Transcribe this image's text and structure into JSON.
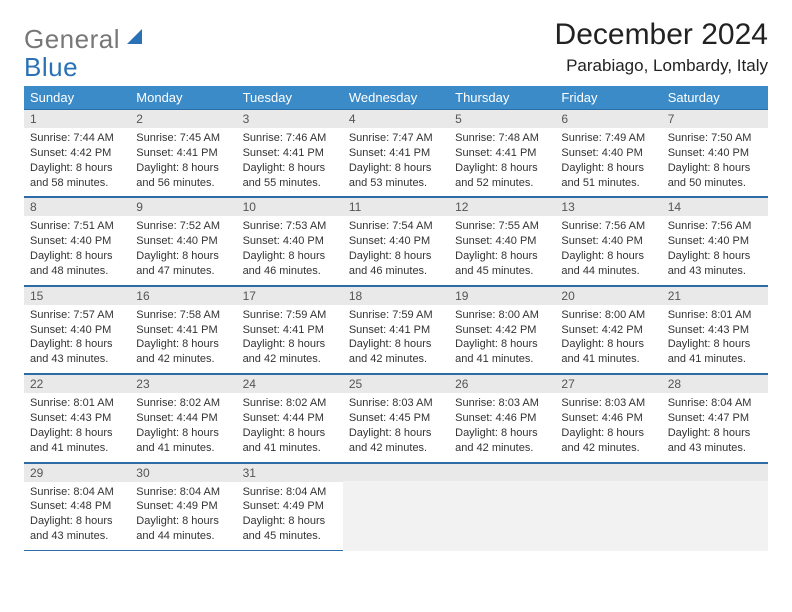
{
  "logo": {
    "gray": "General",
    "blue": "Blue"
  },
  "title": "December 2024",
  "location": "Parabiago, Lombardy, Italy",
  "colors": {
    "header_bg": "#3b8bc9",
    "border": "#2e6ca5",
    "daynum_bg": "#e9e9e9",
    "logo_gray": "#777777",
    "logo_blue": "#2a72b5"
  },
  "weekdays": [
    "Sunday",
    "Monday",
    "Tuesday",
    "Wednesday",
    "Thursday",
    "Friday",
    "Saturday"
  ],
  "days": [
    {
      "n": 1,
      "sunrise": "7:44 AM",
      "sunset": "4:42 PM",
      "daylight": "8 hours and 58 minutes."
    },
    {
      "n": 2,
      "sunrise": "7:45 AM",
      "sunset": "4:41 PM",
      "daylight": "8 hours and 56 minutes."
    },
    {
      "n": 3,
      "sunrise": "7:46 AM",
      "sunset": "4:41 PM",
      "daylight": "8 hours and 55 minutes."
    },
    {
      "n": 4,
      "sunrise": "7:47 AM",
      "sunset": "4:41 PM",
      "daylight": "8 hours and 53 minutes."
    },
    {
      "n": 5,
      "sunrise": "7:48 AM",
      "sunset": "4:41 PM",
      "daylight": "8 hours and 52 minutes."
    },
    {
      "n": 6,
      "sunrise": "7:49 AM",
      "sunset": "4:40 PM",
      "daylight": "8 hours and 51 minutes."
    },
    {
      "n": 7,
      "sunrise": "7:50 AM",
      "sunset": "4:40 PM",
      "daylight": "8 hours and 50 minutes."
    },
    {
      "n": 8,
      "sunrise": "7:51 AM",
      "sunset": "4:40 PM",
      "daylight": "8 hours and 48 minutes."
    },
    {
      "n": 9,
      "sunrise": "7:52 AM",
      "sunset": "4:40 PM",
      "daylight": "8 hours and 47 minutes."
    },
    {
      "n": 10,
      "sunrise": "7:53 AM",
      "sunset": "4:40 PM",
      "daylight": "8 hours and 46 minutes."
    },
    {
      "n": 11,
      "sunrise": "7:54 AM",
      "sunset": "4:40 PM",
      "daylight": "8 hours and 46 minutes."
    },
    {
      "n": 12,
      "sunrise": "7:55 AM",
      "sunset": "4:40 PM",
      "daylight": "8 hours and 45 minutes."
    },
    {
      "n": 13,
      "sunrise": "7:56 AM",
      "sunset": "4:40 PM",
      "daylight": "8 hours and 44 minutes."
    },
    {
      "n": 14,
      "sunrise": "7:56 AM",
      "sunset": "4:40 PM",
      "daylight": "8 hours and 43 minutes."
    },
    {
      "n": 15,
      "sunrise": "7:57 AM",
      "sunset": "4:40 PM",
      "daylight": "8 hours and 43 minutes."
    },
    {
      "n": 16,
      "sunrise": "7:58 AM",
      "sunset": "4:41 PM",
      "daylight": "8 hours and 42 minutes."
    },
    {
      "n": 17,
      "sunrise": "7:59 AM",
      "sunset": "4:41 PM",
      "daylight": "8 hours and 42 minutes."
    },
    {
      "n": 18,
      "sunrise": "7:59 AM",
      "sunset": "4:41 PM",
      "daylight": "8 hours and 42 minutes."
    },
    {
      "n": 19,
      "sunrise": "8:00 AM",
      "sunset": "4:42 PM",
      "daylight": "8 hours and 41 minutes."
    },
    {
      "n": 20,
      "sunrise": "8:00 AM",
      "sunset": "4:42 PM",
      "daylight": "8 hours and 41 minutes."
    },
    {
      "n": 21,
      "sunrise": "8:01 AM",
      "sunset": "4:43 PM",
      "daylight": "8 hours and 41 minutes."
    },
    {
      "n": 22,
      "sunrise": "8:01 AM",
      "sunset": "4:43 PM",
      "daylight": "8 hours and 41 minutes."
    },
    {
      "n": 23,
      "sunrise": "8:02 AM",
      "sunset": "4:44 PM",
      "daylight": "8 hours and 41 minutes."
    },
    {
      "n": 24,
      "sunrise": "8:02 AM",
      "sunset": "4:44 PM",
      "daylight": "8 hours and 41 minutes."
    },
    {
      "n": 25,
      "sunrise": "8:03 AM",
      "sunset": "4:45 PM",
      "daylight": "8 hours and 42 minutes."
    },
    {
      "n": 26,
      "sunrise": "8:03 AM",
      "sunset": "4:46 PM",
      "daylight": "8 hours and 42 minutes."
    },
    {
      "n": 27,
      "sunrise": "8:03 AM",
      "sunset": "4:46 PM",
      "daylight": "8 hours and 42 minutes."
    },
    {
      "n": 28,
      "sunrise": "8:04 AM",
      "sunset": "4:47 PM",
      "daylight": "8 hours and 43 minutes."
    },
    {
      "n": 29,
      "sunrise": "8:04 AM",
      "sunset": "4:48 PM",
      "daylight": "8 hours and 43 minutes."
    },
    {
      "n": 30,
      "sunrise": "8:04 AM",
      "sunset": "4:49 PM",
      "daylight": "8 hours and 44 minutes."
    },
    {
      "n": 31,
      "sunrise": "8:04 AM",
      "sunset": "4:49 PM",
      "daylight": "8 hours and 45 minutes."
    }
  ],
  "labels": {
    "sunrise_prefix": "Sunrise: ",
    "sunset_prefix": "Sunset: ",
    "daylight_prefix": "Daylight: "
  }
}
